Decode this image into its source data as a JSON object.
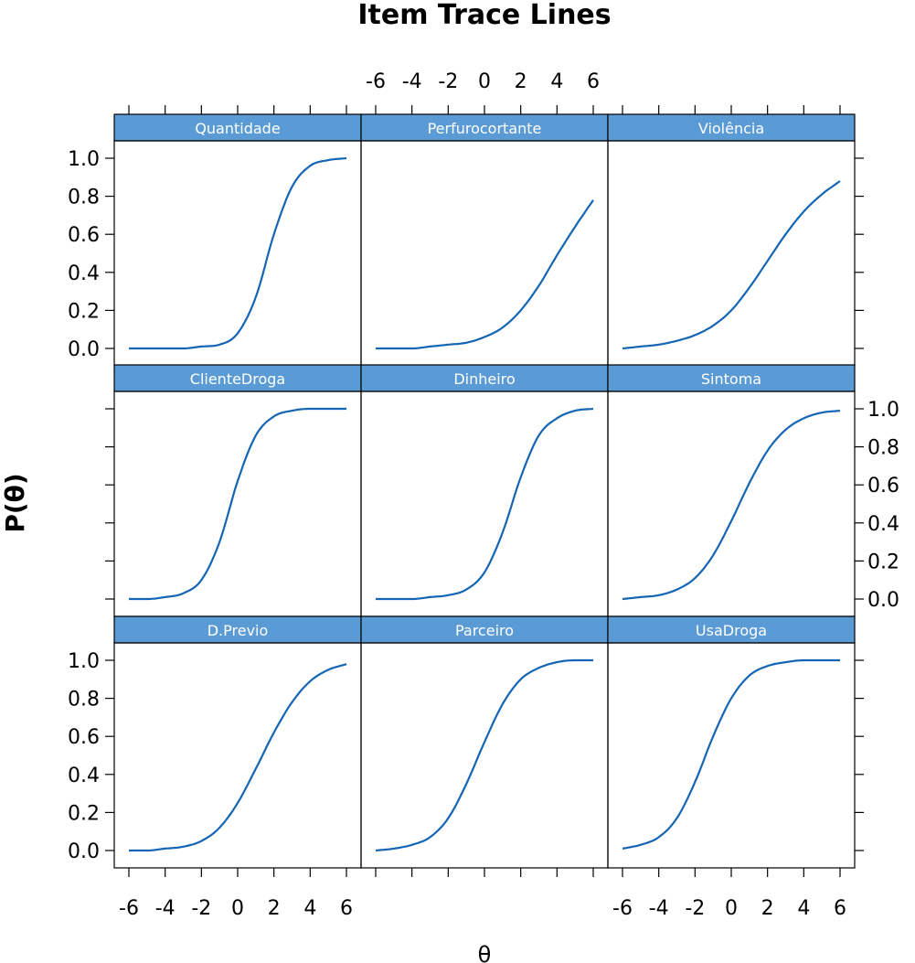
{
  "chart_data": {
    "type": "line",
    "title": "Item Trace Lines",
    "xlabel": "θ",
    "ylabel": "P(θ)",
    "xlim": [
      -6,
      6
    ],
    "ylim": [
      0,
      1
    ],
    "x_ticks": [
      -6,
      -4,
      -2,
      0,
      2,
      4,
      6
    ],
    "x_tick_labels": [
      "-6",
      "-4",
      "-2",
      "0",
      "2",
      "4",
      "6"
    ],
    "y_ticks": [
      0,
      0.2,
      0.4,
      0.6,
      0.8,
      1
    ],
    "y_tick_labels": [
      "0.0",
      "0.2",
      "0.4",
      "0.6",
      "0.8",
      "1.0"
    ],
    "grid": false,
    "layout": "3x3 lattice panels",
    "strip_color": "#5b9bd5",
    "line_color": "#1565b5",
    "theta": [
      -6,
      -5,
      -4,
      -3,
      -2,
      -1,
      0,
      1,
      2,
      3,
      4,
      5,
      6
    ],
    "panels": [
      {
        "name": "Quantidade",
        "values": [
          0.0,
          0.0,
          0.0,
          0.0,
          0.01,
          0.02,
          0.08,
          0.27,
          0.6,
          0.85,
          0.96,
          0.99,
          1.0
        ]
      },
      {
        "name": "Perfurocortante",
        "values": [
          0.0,
          0.0,
          0.0,
          0.01,
          0.02,
          0.03,
          0.06,
          0.11,
          0.2,
          0.33,
          0.49,
          0.64,
          0.78
        ]
      },
      {
        "name": "Violência",
        "values": [
          0.0,
          0.01,
          0.02,
          0.04,
          0.07,
          0.12,
          0.2,
          0.32,
          0.46,
          0.6,
          0.72,
          0.81,
          0.88
        ]
      },
      {
        "name": "ClienteDroga",
        "values": [
          0.0,
          0.0,
          0.01,
          0.03,
          0.1,
          0.3,
          0.62,
          0.86,
          0.96,
          0.99,
          1.0,
          1.0,
          1.0
        ]
      },
      {
        "name": "Dinheiro",
        "values": [
          0.0,
          0.0,
          0.0,
          0.01,
          0.02,
          0.05,
          0.14,
          0.35,
          0.64,
          0.86,
          0.95,
          0.99,
          1.0
        ]
      },
      {
        "name": "Sintoma",
        "values": [
          0.0,
          0.01,
          0.02,
          0.05,
          0.11,
          0.23,
          0.41,
          0.61,
          0.78,
          0.89,
          0.95,
          0.98,
          0.99
        ]
      },
      {
        "name": "D.Previo",
        "values": [
          0.0,
          0.0,
          0.01,
          0.02,
          0.05,
          0.12,
          0.25,
          0.43,
          0.62,
          0.78,
          0.89,
          0.95,
          0.98
        ]
      },
      {
        "name": "Parceiro",
        "values": [
          0.0,
          0.01,
          0.03,
          0.07,
          0.17,
          0.35,
          0.57,
          0.77,
          0.9,
          0.96,
          0.99,
          1.0,
          1.0
        ]
      },
      {
        "name": "UsaDroga",
        "values": [
          0.01,
          0.03,
          0.07,
          0.17,
          0.36,
          0.6,
          0.8,
          0.92,
          0.97,
          0.99,
          1.0,
          1.0,
          1.0
        ]
      }
    ]
  }
}
